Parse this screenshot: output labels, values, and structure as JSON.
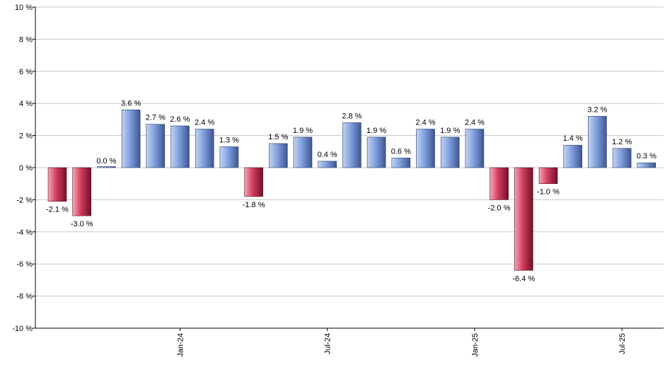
{
  "chart_data": {
    "type": "bar",
    "title": "",
    "xlabel": "",
    "ylabel": "",
    "ylim": [
      -10,
      10
    ],
    "yticks": [
      10,
      8,
      6,
      4,
      2,
      0,
      -2,
      -4,
      -6,
      -8,
      -10
    ],
    "ytick_suffix": " %",
    "grid": true,
    "x_tick_labels": [
      {
        "label": "Jan-24",
        "index": 5
      },
      {
        "label": "Jul-24",
        "index": 11
      },
      {
        "label": "Jan-25",
        "index": 17
      },
      {
        "label": "Jul-25",
        "index": 23
      }
    ],
    "values": [
      -2.1,
      -3.0,
      0.0,
      3.6,
      2.7,
      2.6,
      2.4,
      1.3,
      -1.8,
      1.5,
      1.9,
      0.4,
      2.8,
      1.9,
      0.6,
      2.4,
      1.9,
      2.4,
      -2.0,
      -6.4,
      -1.0,
      1.4,
      3.2,
      1.2,
      0.3
    ],
    "data_labels": [
      "-2.1 %",
      "-3.0 %",
      "0.0 %",
      "3.6 %",
      "2.7 %",
      "2.6 %",
      "2.4 %",
      "1.3 %",
      "-1.8 %",
      "1.5 %",
      "1.9 %",
      "0.4 %",
      "2.8 %",
      "1.9 %",
      "0.6 %",
      "2.4 %",
      "1.9 %",
      "2.4 %",
      "-2.0 %",
      "-6.4 %",
      "-1.0 %",
      "1.4 %",
      "3.2 %",
      "1.2 %",
      "0.3 %"
    ],
    "colors": {
      "positive": "#7f9fdf",
      "negative": "#c8304f",
      "grid": "#c8c8c8",
      "axis": "#000000"
    }
  }
}
